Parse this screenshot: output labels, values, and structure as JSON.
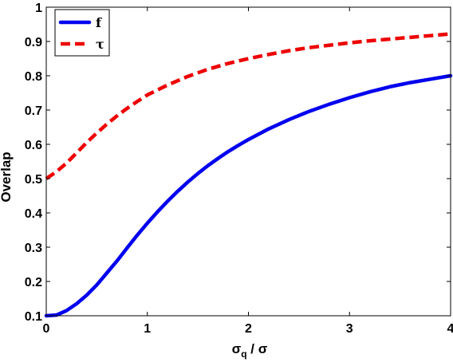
{
  "chart_data": {
    "type": "line",
    "xlabel": {
      "main": "σ",
      "sub": "q",
      "rest": " / σ"
    },
    "ylabel": "Overlap",
    "xlim": [
      0,
      4
    ],
    "ylim": [
      0.1,
      1
    ],
    "xticks": [
      {
        "value": 0,
        "label": "0"
      },
      {
        "value": 1,
        "label": "1"
      },
      {
        "value": 2,
        "label": "2"
      },
      {
        "value": 3,
        "label": "3"
      },
      {
        "value": 4,
        "label": "4"
      }
    ],
    "yticks": [
      {
        "value": 0.1,
        "label": "0.1"
      },
      {
        "value": 0.2,
        "label": "0.2"
      },
      {
        "value": 0.3,
        "label": "0.3"
      },
      {
        "value": 0.4,
        "label": "0.4"
      },
      {
        "value": 0.5,
        "label": "0.5"
      },
      {
        "value": 0.6,
        "label": "0.6"
      },
      {
        "value": 0.7,
        "label": "0.7"
      },
      {
        "value": 0.8,
        "label": "0.8"
      },
      {
        "value": 0.9,
        "label": "0.9"
      },
      {
        "value": 1,
        "label": "1"
      }
    ],
    "grid": false,
    "legend_position": "top-left",
    "series": [
      {
        "name": "f",
        "color": "#0000ee",
        "style": "solid",
        "points": [
          [
            0,
            0.1
          ],
          [
            0.1,
            0.102
          ],
          [
            0.2,
            0.115
          ],
          [
            0.3,
            0.135
          ],
          [
            0.4,
            0.16
          ],
          [
            0.5,
            0.19
          ],
          [
            0.6,
            0.225
          ],
          [
            0.7,
            0.26
          ],
          [
            0.8,
            0.298
          ],
          [
            0.9,
            0.335
          ],
          [
            1.0,
            0.37
          ],
          [
            1.1,
            0.403
          ],
          [
            1.2,
            0.434
          ],
          [
            1.3,
            0.463
          ],
          [
            1.4,
            0.49
          ],
          [
            1.5,
            0.515
          ],
          [
            1.6,
            0.538
          ],
          [
            1.7,
            0.559
          ],
          [
            1.8,
            0.579
          ],
          [
            1.9,
            0.597
          ],
          [
            2.0,
            0.614
          ],
          [
            2.2,
            0.645
          ],
          [
            2.4,
            0.672
          ],
          [
            2.6,
            0.696
          ],
          [
            2.8,
            0.717
          ],
          [
            3.0,
            0.736
          ],
          [
            3.2,
            0.753
          ],
          [
            3.4,
            0.768
          ],
          [
            3.6,
            0.78
          ],
          [
            3.8,
            0.79
          ],
          [
            4.0,
            0.8
          ]
        ]
      },
      {
        "name": "τ",
        "color": "#ee0000",
        "style": "dashed",
        "points": [
          [
            0,
            0.5
          ],
          [
            0.1,
            0.52
          ],
          [
            0.2,
            0.545
          ],
          [
            0.3,
            0.575
          ],
          [
            0.4,
            0.605
          ],
          [
            0.5,
            0.633
          ],
          [
            0.6,
            0.659
          ],
          [
            0.7,
            0.683
          ],
          [
            0.8,
            0.705
          ],
          [
            0.9,
            0.725
          ],
          [
            1.0,
            0.744
          ],
          [
            1.2,
            0.773
          ],
          [
            1.4,
            0.798
          ],
          [
            1.6,
            0.819
          ],
          [
            1.8,
            0.836
          ],
          [
            2.0,
            0.85
          ],
          [
            2.2,
            0.862
          ],
          [
            2.4,
            0.873
          ],
          [
            2.6,
            0.882
          ],
          [
            2.8,
            0.889
          ],
          [
            3.0,
            0.896
          ],
          [
            3.2,
            0.902
          ],
          [
            3.4,
            0.907
          ],
          [
            3.6,
            0.912
          ],
          [
            3.8,
            0.917
          ],
          [
            4.0,
            0.922
          ]
        ]
      }
    ]
  }
}
